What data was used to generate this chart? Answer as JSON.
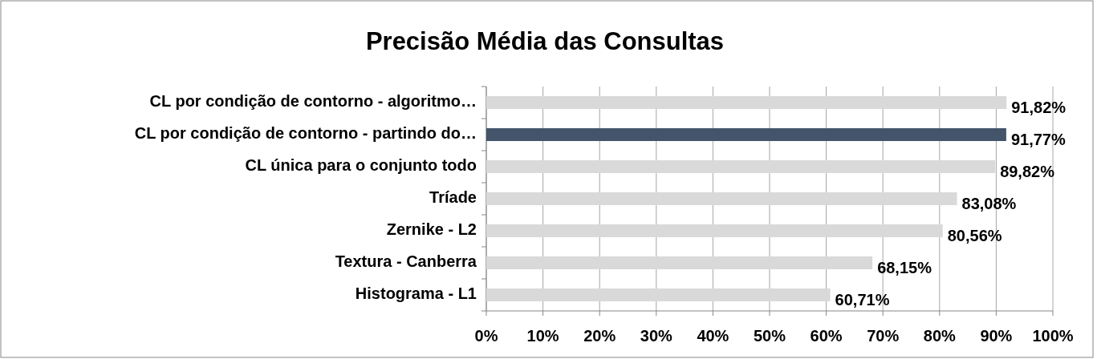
{
  "chart_data": {
    "type": "bar",
    "orientation": "horizontal",
    "title": "Precisão Média das Consultas",
    "categories": [
      "CL por condição de contorno - algoritmo…",
      "CL por condição de contorno - partindo do…",
      "CL única para o conjunto todo",
      "Tríade",
      "Zernike - L2",
      "Textura - Canberra",
      "Histograma - L1"
    ],
    "values": [
      91.82,
      91.77,
      89.82,
      83.08,
      80.56,
      68.15,
      60.71
    ],
    "colors": [
      "#d9d9d9",
      "#44546a",
      "#d9d9d9",
      "#d9d9d9",
      "#d9d9d9",
      "#d9d9d9",
      "#d9d9d9"
    ],
    "value_labels": [
      "91,82%",
      "91,77%",
      "89,82%",
      "83,08%",
      "80,56%",
      "68,15%",
      "60,71%"
    ],
    "xlim": [
      0,
      100
    ],
    "xticks": [
      {
        "value": 0,
        "label": "0%"
      },
      {
        "value": 10,
        "label": "10%"
      },
      {
        "value": 20,
        "label": "20%"
      },
      {
        "value": 30,
        "label": "30%"
      },
      {
        "value": 40,
        "label": "40%"
      },
      {
        "value": 50,
        "label": "50%"
      },
      {
        "value": 60,
        "label": "60%"
      },
      {
        "value": 70,
        "label": "70%"
      },
      {
        "value": 80,
        "label": "80%"
      },
      {
        "value": 90,
        "label": "90%"
      },
      {
        "value": 100,
        "label": "100%"
      }
    ],
    "grid": "x"
  }
}
